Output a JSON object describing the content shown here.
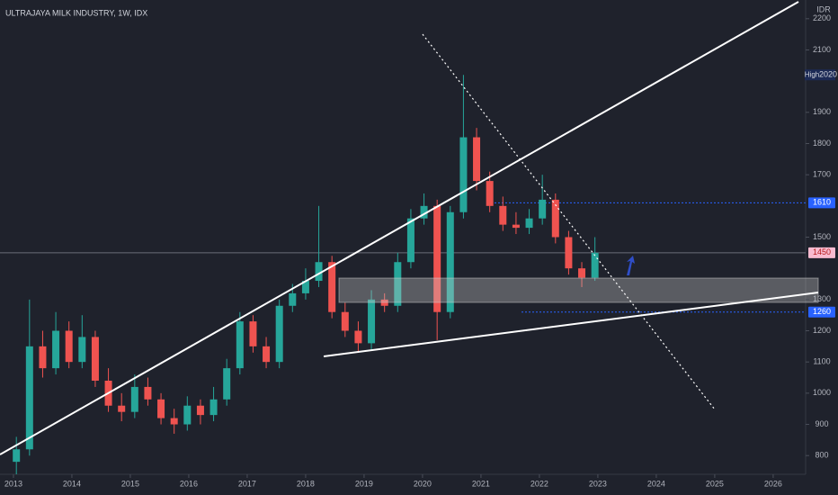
{
  "chart_data": {
    "type": "candlestick",
    "title": "ULTRAJAYA MILK INDUSTRY, 1W, IDX",
    "currency": "IDR",
    "high_label": "High",
    "high_value": 2020,
    "price_labels": [
      1610,
      1450,
      1260
    ],
    "x": [
      2013.05,
      2013.275,
      2013.5,
      2013.725,
      2013.95,
      2014.175,
      2014.4,
      2014.625,
      2014.85,
      2015.075,
      2015.3,
      2015.525,
      2015.75,
      2015.975,
      2016.2,
      2016.425,
      2016.65,
      2016.875,
      2017.1,
      2017.325,
      2017.55,
      2017.775,
      2018.0,
      2018.225,
      2018.45,
      2018.675,
      2018.9,
      2019.125,
      2019.35,
      2019.575,
      2019.8,
      2020.025,
      2020.25,
      2020.475,
      2020.7,
      2020.925,
      2021.15,
      2021.375,
      2021.6,
      2021.825,
      2022.05,
      2022.275,
      2022.5,
      2022.725,
      2022.95
    ],
    "open": [
      780,
      820,
      1150,
      1080,
      1200,
      1100,
      1180,
      1040,
      960,
      940,
      1020,
      980,
      920,
      900,
      960,
      930,
      980,
      1080,
      1230,
      1150,
      1100,
      1280,
      1320,
      1360,
      1420,
      1260,
      1200,
      1160,
      1300,
      1280,
      1420,
      1560,
      1600,
      1260,
      1580,
      1820,
      1680,
      1600,
      1540,
      1530,
      1560,
      1620,
      1500,
      1400,
      1370
    ],
    "high": [
      860,
      1300,
      1200,
      1260,
      1230,
      1250,
      1200,
      1080,
      1000,
      1060,
      1050,
      1000,
      950,
      990,
      980,
      1020,
      1110,
      1260,
      1250,
      1180,
      1300,
      1350,
      1400,
      1600,
      1440,
      1290,
      1230,
      1330,
      1320,
      1450,
      1590,
      1640,
      1620,
      1600,
      2020,
      1850,
      1710,
      1630,
      1580,
      1590,
      1700,
      1640,
      1520,
      1420,
      1500
    ],
    "low": [
      740,
      800,
      1050,
      1060,
      1080,
      1080,
      1020,
      940,
      910,
      920,
      960,
      900,
      870,
      880,
      900,
      910,
      960,
      1060,
      1130,
      1080,
      1080,
      1260,
      1300,
      1340,
      1240,
      1180,
      1130,
      1140,
      1260,
      1260,
      1400,
      1540,
      1170,
      1240,
      1560,
      1650,
      1580,
      1520,
      1510,
      1510,
      1540,
      1480,
      1380,
      1340,
      1360
    ],
    "close": [
      820,
      1150,
      1080,
      1200,
      1100,
      1180,
      1040,
      960,
      940,
      1020,
      980,
      920,
      900,
      960,
      930,
      980,
      1080,
      1230,
      1150,
      1100,
      1280,
      1320,
      1360,
      1420,
      1260,
      1200,
      1160,
      1300,
      1280,
      1420,
      1560,
      1600,
      1260,
      1580,
      1820,
      1680,
      1600,
      1540,
      1530,
      1560,
      1620,
      1500,
      1400,
      1370,
      1450
    ],
    "up_color": "#26a69a",
    "down_color": "#ef5350",
    "xlim": [
      2012.77,
      2026.54
    ],
    "xticks": [
      2013,
      2014,
      2015,
      2016,
      2017,
      2018,
      2019,
      2020,
      2021,
      2022,
      2023,
      2024,
      2025,
      2026
    ],
    "ylim": [
      740,
      2260
    ],
    "yticks": [
      800,
      900,
      1000,
      1100,
      1200,
      1300,
      1500,
      1700,
      1800,
      1900,
      2100,
      2200
    ]
  }
}
